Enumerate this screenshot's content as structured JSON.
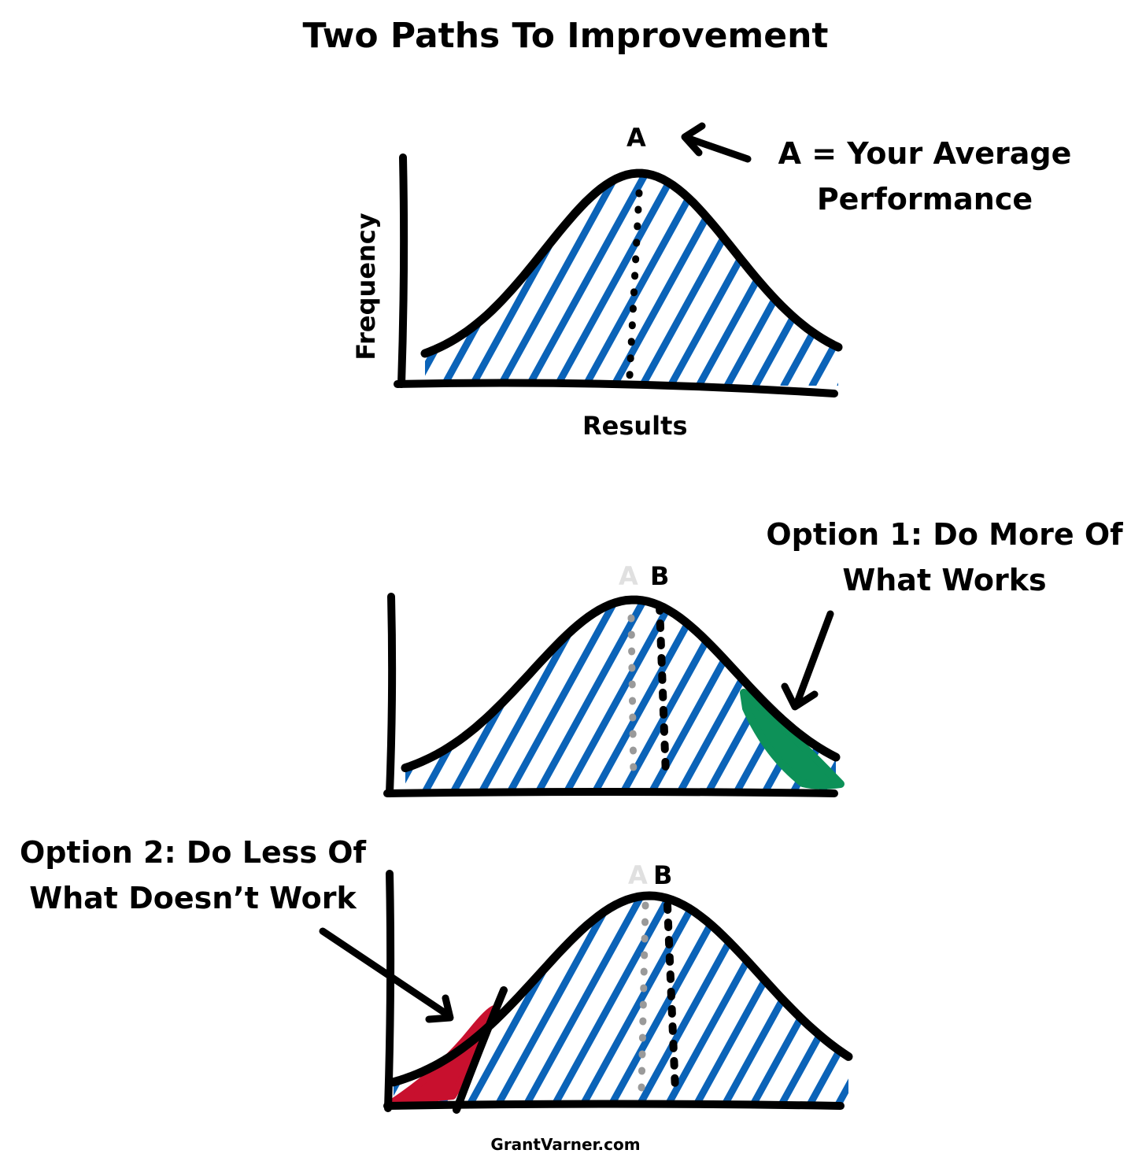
{
  "title": "Two Paths To Improvement",
  "panel1": {
    "label_a": "A",
    "note_line1": "A = Your Average",
    "note_line2": "Performance",
    "ylabel": "Frequency",
    "xlabel": "Results"
  },
  "panel2": {
    "label_a": "A",
    "label_b": "B",
    "note_line1": "Option 1: Do More Of",
    "note_line2": "What Works"
  },
  "panel3": {
    "label_a": "A",
    "label_b": "B",
    "note_line1": "Option 2: Do Less Of",
    "note_line2": "What Doesn’t Work"
  },
  "footer": "GrantVarner.com",
  "colors": {
    "ink": "#000000",
    "hatch": "#0b63b8",
    "faded_line": "#9a9a9a",
    "faded_label": "#e0e0e0",
    "good_tail": "#0d9158",
    "bad_tail": "#c8102e"
  }
}
